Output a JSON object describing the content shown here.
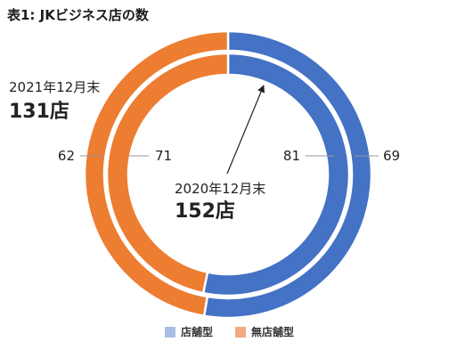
{
  "title": "表1: JKビジネス店の数",
  "colors": {
    "store": "#4472c4",
    "storeless": "#ed7d31",
    "legend_store": "#a9bce3",
    "legend_storeless": "#f4aa81"
  },
  "chart_data": {
    "type": "pie",
    "variant": "nested-donut",
    "categories": [
      "店舗型",
      "無店舗型"
    ],
    "series": [
      {
        "name": "2020年12月末",
        "total_label": "152店",
        "values": [
          81,
          71
        ],
        "ring": "inner"
      },
      {
        "name": "2021年12月末",
        "total_label": "131店",
        "values": [
          69,
          62
        ],
        "ring": "outer"
      }
    ],
    "legend": {
      "placement": "bottom",
      "items": [
        "店舗型",
        "無店舗型"
      ]
    }
  }
}
